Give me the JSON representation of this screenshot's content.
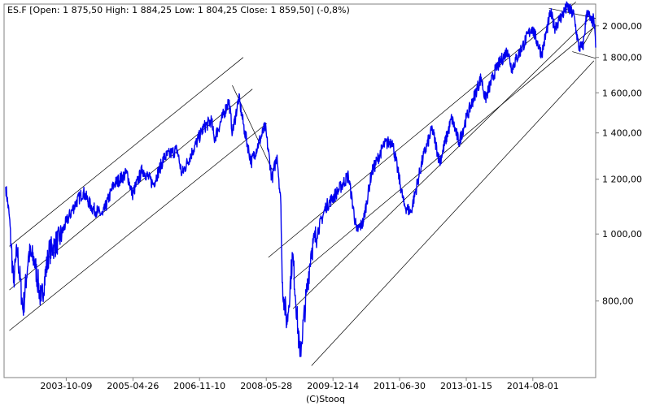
{
  "header": {
    "text": "ES.F [Open: 1 875,50  High: 1 884,25  Low: 1 804,25  Close: 1 859,50] (-0,8%)"
  },
  "footer": {
    "credit": "(C)Stooq"
  },
  "colors": {
    "series": "#0000ee",
    "channel": "#000000",
    "axis": "#808080"
  },
  "chart_data": {
    "type": "line",
    "title": "",
    "xlabel": "",
    "ylabel": "",
    "y_scale": "log",
    "ylim": [
      620,
      2150
    ],
    "xlim": [
      "2002-05-01",
      "2016-01-15"
    ],
    "grid": false,
    "x_tick_labels": [
      "2003-10-09",
      "2005-04-26",
      "2006-11-10",
      "2008-05-28",
      "2009-12-14",
      "2011-06-30",
      "2013-01-15",
      "2014-08-01"
    ],
    "y_tick_values": [
      800,
      1000,
      1200,
      1400,
      1600,
      1800,
      2000
    ],
    "y_tick_labels": [
      "800,00",
      "1 000,00",
      "1 200,00",
      "1 400,00",
      "1 600,00",
      "1 800,00",
      "2 000,00"
    ],
    "series": [
      {
        "points": [
          [
            "2002-05-15",
            1170
          ],
          [
            "2002-06-15",
            1060
          ],
          [
            "2002-07-20",
            850
          ],
          [
            "2002-08-20",
            950
          ],
          [
            "2002-10-09",
            775
          ],
          [
            "2002-11-25",
            935
          ],
          [
            "2003-01-10",
            920
          ],
          [
            "2003-03-11",
            800
          ],
          [
            "2003-05-15",
            940
          ],
          [
            "2003-08-15",
            985
          ],
          [
            "2003-10-09",
            1040
          ],
          [
            "2003-12-31",
            1110
          ],
          [
            "2004-03-01",
            1150
          ],
          [
            "2004-05-15",
            1090
          ],
          [
            "2004-08-12",
            1065
          ],
          [
            "2004-11-15",
            1180
          ],
          [
            "2005-03-07",
            1225
          ],
          [
            "2005-04-20",
            1140
          ],
          [
            "2005-07-15",
            1240
          ],
          [
            "2005-10-15",
            1180
          ],
          [
            "2006-01-15",
            1290
          ],
          [
            "2006-05-05",
            1325
          ],
          [
            "2006-06-13",
            1220
          ],
          [
            "2006-09-15",
            1320
          ],
          [
            "2006-12-15",
            1425
          ],
          [
            "2007-02-20",
            1460
          ],
          [
            "2007-03-14",
            1370
          ],
          [
            "2007-07-17",
            1560
          ],
          [
            "2007-08-16",
            1400
          ],
          [
            "2007-10-09",
            1575
          ],
          [
            "2007-11-26",
            1410
          ],
          [
            "2008-01-22",
            1270
          ],
          [
            "2008-05-19",
            1430
          ],
          [
            "2008-07-15",
            1200
          ],
          [
            "2008-08-28",
            1300
          ],
          [
            "2008-09-29",
            1100
          ],
          [
            "2008-10-10",
            850
          ],
          [
            "2008-11-20",
            740
          ],
          [
            "2009-01-06",
            935
          ],
          [
            "2009-03-09",
            665
          ],
          [
            "2009-06-12",
            945
          ],
          [
            "2009-10-15",
            1095
          ],
          [
            "2010-01-19",
            1150
          ],
          [
            "2010-04-23",
            1215
          ],
          [
            "2010-07-02",
            1010
          ],
          [
            "2010-08-27",
            1040
          ],
          [
            "2010-11-05",
            1225
          ],
          [
            "2011-02-18",
            1345
          ],
          [
            "2011-04-29",
            1365
          ],
          [
            "2011-08-08",
            1100
          ],
          [
            "2011-10-04",
            1075
          ],
          [
            "2012-01-15",
            1290
          ],
          [
            "2012-04-02",
            1420
          ],
          [
            "2012-06-04",
            1270
          ],
          [
            "2012-09-14",
            1470
          ],
          [
            "2012-11-15",
            1355
          ],
          [
            "2013-01-15",
            1470
          ],
          [
            "2013-05-21",
            1685
          ],
          [
            "2013-06-24",
            1565
          ],
          [
            "2013-09-18",
            1725
          ],
          [
            "2013-12-31",
            1845
          ],
          [
            "2014-02-03",
            1735
          ],
          [
            "2014-07-24",
            1990
          ],
          [
            "2014-10-15",
            1820
          ],
          [
            "2014-12-29",
            2090
          ],
          [
            "2015-02-01",
            1990
          ],
          [
            "2015-05-20",
            2130
          ],
          [
            "2015-07-15",
            2070
          ],
          [
            "2015-08-24",
            1865
          ],
          [
            "2015-09-29",
            1860
          ],
          [
            "2015-11-03",
            2105
          ],
          [
            "2015-12-10",
            2020
          ],
          [
            "2015-12-31",
            2045
          ],
          [
            "2016-01-15",
            1860
          ]
        ]
      }
    ],
    "annotations": [
      {
        "type": "trendline",
        "from": [
          "2002-06-15",
          960
        ],
        "to": [
          "2007-11-15",
          1800
        ]
      },
      {
        "type": "trendline",
        "from": [
          "2002-06-15",
          830
        ],
        "to": [
          "2008-02-01",
          1620
        ]
      },
      {
        "type": "trendline",
        "from": [
          "2002-06-15",
          725
        ],
        "to": [
          "2008-06-01",
          1445
        ]
      },
      {
        "type": "trendline",
        "from": [
          "2007-08-15",
          1640
        ],
        "to": [
          "2008-07-15",
          1240
        ]
      },
      {
        "type": "trendline",
        "from": [
          "2008-06-15",
          925
        ],
        "to": [
          "2015-08-01",
          2165
        ]
      },
      {
        "type": "trendline",
        "from": [
          "2009-01-10",
          780
        ],
        "to": [
          "2015-12-15",
          2065
        ]
      },
      {
        "type": "trendline",
        "from": [
          "2009-06-15",
          645
        ],
        "to": [
          "2015-12-31",
          1780
        ]
      },
      {
        "type": "trendline",
        "from": [
          "2009-01-10",
          860
        ],
        "to": [
          "2016-01-15",
          2000
        ]
      },
      {
        "type": "trendline",
        "from": [
          "2014-12-15",
          2120
        ],
        "to": [
          "2016-01-15",
          2050
        ]
      },
      {
        "type": "trendline",
        "from": [
          "2015-07-01",
          1835
        ],
        "to": [
          "2016-01-15",
          1795
        ]
      },
      {
        "type": "trendline",
        "from": [
          "2015-09-20",
          1860
        ],
        "to": [
          "2016-01-10",
          2010
        ]
      }
    ]
  }
}
